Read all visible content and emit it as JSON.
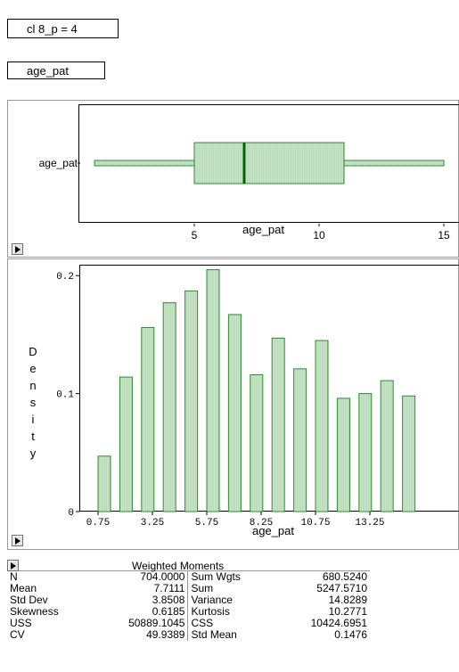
{
  "group_title": "cl 8_p = 4",
  "variable_title": "age_pat",
  "boxplot": {
    "y_category": "age_pat",
    "x_axis_label": "age_pat",
    "ticks": [
      "5",
      "10",
      "15"
    ],
    "stats": {
      "whisker_low": 1,
      "q1": 5,
      "median": 7,
      "q3": 11,
      "whisker_high": 15
    },
    "fill_color": "#c8e6c8",
    "line_color": "#2e8b2e"
  },
  "histogram": {
    "y_label_letters": [
      "D",
      "e",
      "n",
      "s",
      "i",
      "t",
      "y"
    ],
    "y_ticks": [
      "0.2",
      "0.1",
      "0"
    ],
    "x_ticks": [
      "0.75",
      "3.25",
      "5.75",
      "8.25",
      "10.75",
      "13.25"
    ],
    "x_axis_label": "age_pat"
  },
  "chart_data": {
    "type": "bar",
    "title": "",
    "xlabel": "age_pat",
    "ylabel": "Density",
    "categories": [
      "0.75",
      "1.75",
      "2.75",
      "3.75",
      "4.75",
      "5.75",
      "6.75",
      "7.75",
      "8.75",
      "9.75",
      "10.75",
      "11.75",
      "12.75",
      "13.75",
      "14.75"
    ],
    "values": [
      0.047,
      0.114,
      0.156,
      0.177,
      0.187,
      0.205,
      0.167,
      0.116,
      0.147,
      0.121,
      0.145,
      0.096,
      0.1,
      0.111,
      0.098
    ],
    "ylim": [
      0,
      0.21
    ],
    "grid": false
  },
  "moments": {
    "title": "Weighted Moments",
    "rows": [
      {
        "label1": "N",
        "value1": "704.0000",
        "label2": "Sum Wgts",
        "value2": "680.5240"
      },
      {
        "label1": "Mean",
        "value1": "7.7111",
        "label2": "Sum",
        "value2": "5247.5710"
      },
      {
        "label1": "Std Dev",
        "value1": "3.8508",
        "label2": "Variance",
        "value2": "14.8289"
      },
      {
        "label1": "Skewness",
        "value1": "0.6185",
        "label2": "Kurtosis",
        "value2": "10.2771"
      },
      {
        "label1": "USS",
        "value1": "50889.1045",
        "label2": "CSS",
        "value2": "10424.6951"
      },
      {
        "label1": "CV",
        "value1": "49.9389",
        "label2": "Std Mean",
        "value2": "0.1476"
      }
    ]
  }
}
